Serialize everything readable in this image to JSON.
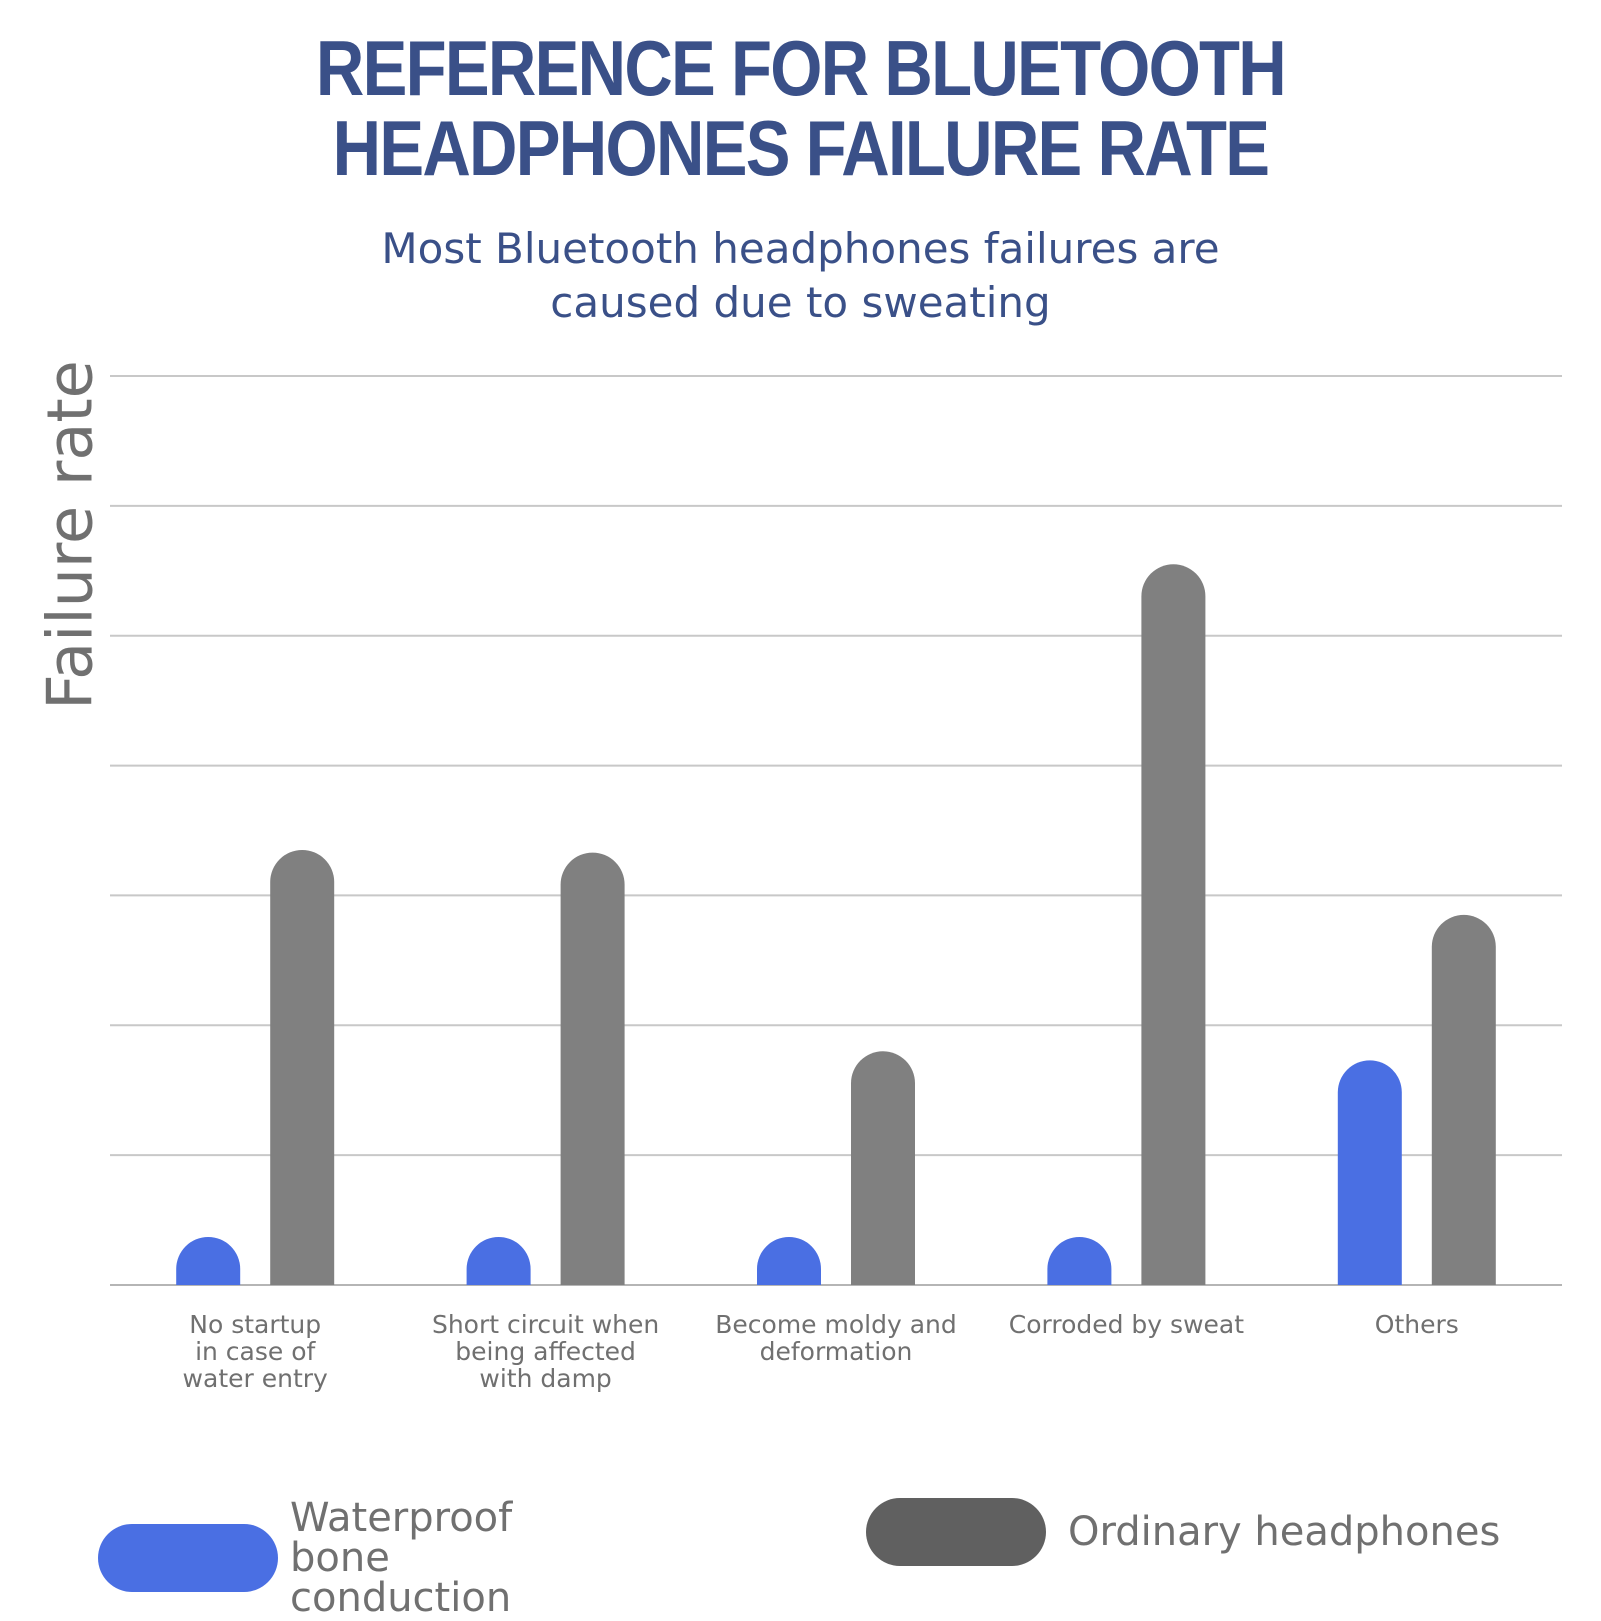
{
  "chart_data": {
    "type": "bar",
    "title": "REFERENCE FOR BLUETOOTH HEADPHONES FAILURE RATE",
    "title_lines": [
      "REFERENCE FOR BLUETOOTH",
      "HEADPHONES FAILURE RATE"
    ],
    "subtitle": "Most Bluetooth headphones failures are caused due to sweating",
    "subtitle_lines": [
      "Most Bluetooth headphones failures are",
      "caused due to sweating"
    ],
    "xlabel": "",
    "ylabel": "Failure rate",
    "ylim": [
      0,
      7
    ],
    "y_ticks_labeled": false,
    "grid": true,
    "legend_position": "bottom",
    "categories": [
      "No startup in case of water entry",
      "Short circuit when being affected with damp",
      "Become moldy and deformation",
      "Corroded by sweat",
      "Others"
    ],
    "category_lines": [
      [
        "No startup",
        "in case of",
        "water entry"
      ],
      [
        "Short circuit when",
        "being affected",
        "with damp"
      ],
      [
        "Become moldy and",
        "deformation"
      ],
      [
        "Corroded by sweat"
      ],
      [
        "Others"
      ]
    ],
    "series": [
      {
        "name": "Waterproof bone conduction",
        "color": "#4a6fe3",
        "values": [
          0.37,
          0.37,
          0.37,
          0.37,
          1.73
        ]
      },
      {
        "name": "Ordinary headphones",
        "color": "#808080",
        "legend_color": "#606060",
        "values": [
          3.35,
          3.33,
          1.8,
          5.55,
          2.85
        ]
      }
    ]
  }
}
